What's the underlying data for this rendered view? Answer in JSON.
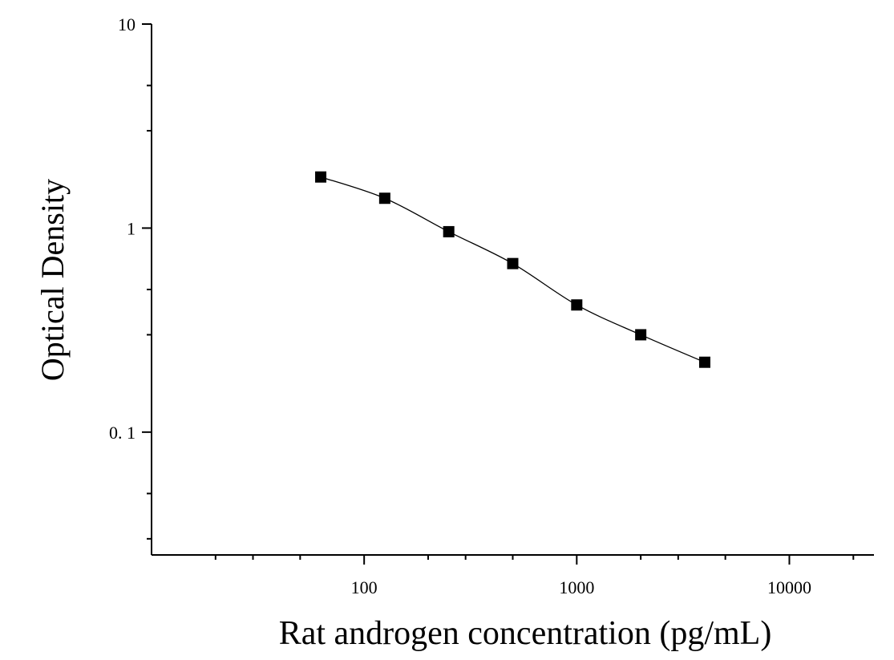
{
  "chart_data": {
    "type": "scatter",
    "title": "",
    "xlabel": "Rat androgen concentration (pg/mL)",
    "ylabel": "Optical Density",
    "x_scale": "log",
    "y_scale": "log",
    "xlim": [
      10,
      25000
    ],
    "ylim": [
      0.025,
      10
    ],
    "x_ticks": [
      {
        "value": 100,
        "label": "100"
      },
      {
        "value": 1000,
        "label": "1000"
      },
      {
        "value": 10000,
        "label": "10000"
      }
    ],
    "y_ticks": [
      {
        "value": 0.1,
        "label": "0. 1"
      },
      {
        "value": 1,
        "label": "1"
      },
      {
        "value": 10,
        "label": "10"
      }
    ],
    "grid": false,
    "legend": "none",
    "series": [
      {
        "x": [
          62.5,
          125,
          250,
          500,
          1000,
          2000,
          4000
        ],
        "y": [
          1.78,
          1.4,
          0.96,
          0.67,
          0.42,
          0.3,
          0.22
        ],
        "marker": "square",
        "fit_line": true
      }
    ],
    "colors": {
      "axis": "#000000",
      "marker": "#000000",
      "line": "#000000"
    }
  }
}
